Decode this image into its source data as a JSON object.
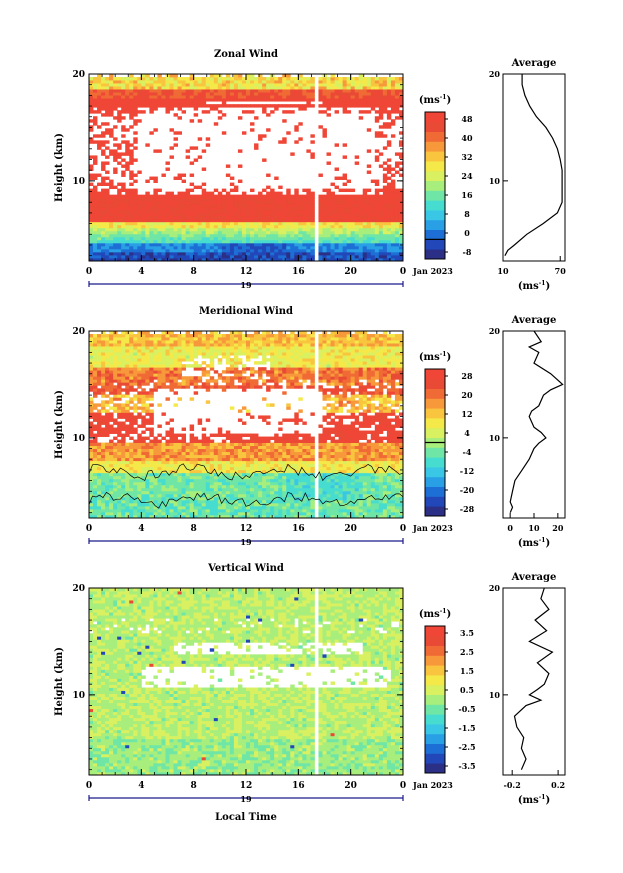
{
  "chart_data": [
    {
      "type": "heatmap",
      "title": "Zonal Wind",
      "ylabel": "Height (km)",
      "xlim": [
        0,
        24
      ],
      "ylim": [
        2.5,
        20
      ],
      "x_ticks": [
        "0",
        "4",
        "8",
        "12",
        "16",
        "20",
        "0"
      ],
      "y_ticks": [
        "10",
        "20"
      ],
      "date_label": "19",
      "month_label": "Jan 2023",
      "colorbar": {
        "unit_label": "(ms",
        "unit_exp": "-1",
        "unit_close": ")",
        "ticks": [
          "48",
          "40",
          "32",
          "24",
          "16",
          "8",
          "0",
          "-8"
        ],
        "range": [
          -8,
          52
        ],
        "zero_line": 0
      },
      "data_gap_hours": [
        17.3,
        17.6
      ],
      "profile": {
        "title": "Average",
        "xlabel": "(ms",
        "xlabel_exp": "-1",
        "xlabel_close": ")",
        "x_ticks": [
          "10",
          "70"
        ],
        "xlim": [
          10,
          75
        ],
        "heights": [
          3,
          3.5,
          4,
          5,
          6,
          7,
          8,
          9,
          10,
          11,
          12,
          13,
          14,
          15,
          16,
          17,
          18,
          19,
          20
        ],
        "values": [
          12,
          15,
          22,
          35,
          52,
          67,
          72,
          72,
          72,
          72,
          70,
          67,
          62,
          55,
          45,
          38,
          33,
          30,
          30
        ]
      }
    },
    {
      "type": "heatmap",
      "title": "Meridional Wind",
      "ylabel": "Height (km)",
      "xlim": [
        0,
        24
      ],
      "ylim": [
        2.5,
        20
      ],
      "x_ticks": [
        "0",
        "4",
        "8",
        "12",
        "16",
        "20",
        "0"
      ],
      "y_ticks": [
        "10",
        "20"
      ],
      "date_label": "19",
      "month_label": "Jan 2023",
      "colorbar": {
        "unit_label": "(ms",
        "unit_exp": "-1",
        "unit_close": ")",
        "ticks": [
          "28",
          "20",
          "12",
          "4",
          "-4",
          "-12",
          "-20",
          "-28"
        ],
        "range": [
          -32,
          32
        ],
        "zero_line": 0
      },
      "data_gap_hours": [
        17.3,
        17.6
      ],
      "profile": {
        "title": "Average",
        "xlabel": "(ms",
        "xlabel_exp": "-1",
        "xlabel_close": ")",
        "x_ticks": [
          "0",
          "10",
          "20"
        ],
        "xlim": [
          -3,
          23
        ],
        "heights": [
          3,
          3.5,
          4,
          5,
          6,
          7,
          8,
          9,
          9.5,
          10,
          10.5,
          11,
          12,
          12.5,
          13,
          14,
          14.5,
          15,
          16,
          17,
          18,
          18.5,
          19,
          20
        ],
        "values": [
          0,
          1,
          0,
          1,
          2,
          5,
          8,
          10,
          12,
          15,
          13,
          10,
          8,
          9,
          12,
          14,
          17,
          22,
          17,
          10,
          12,
          8,
          13,
          10
        ]
      }
    },
    {
      "type": "heatmap",
      "title": "Vertical Wind",
      "ylabel": "Height (km)",
      "xlabel": "Local Time",
      "xlim": [
        0,
        24
      ],
      "ylim": [
        2.5,
        20
      ],
      "x_ticks": [
        "0",
        "4",
        "8",
        "12",
        "16",
        "20",
        "0"
      ],
      "y_ticks": [
        "10",
        "20"
      ],
      "date_label": "19",
      "month_label": "Jan 2023",
      "colorbar": {
        "unit_label": "(ms",
        "unit_exp": "-1",
        "unit_close": ")",
        "ticks": [
          "3.5",
          "2.5",
          "1.5",
          "0.5",
          "-0.5",
          "-1.5",
          "-2.5",
          "-3.5"
        ],
        "range": [
          -4,
          4
        ],
        "zero_line": null
      },
      "data_gap_hours": [
        17.3,
        17.6
      ],
      "profile": {
        "title": "Average",
        "xlabel": "(ms",
        "xlabel_exp": "-1",
        "xlabel_close": ")",
        "x_ticks": [
          "-0.2",
          "0.2"
        ],
        "xlim": [
          -0.28,
          0.26
        ],
        "heights": [
          3,
          4,
          5,
          6,
          7,
          8,
          9,
          9.5,
          10,
          10.5,
          11,
          12,
          13,
          14,
          15,
          16,
          17,
          18,
          19,
          20
        ],
        "values": [
          -0.12,
          -0.08,
          -0.12,
          -0.1,
          -0.16,
          -0.18,
          -0.08,
          0.05,
          -0.05,
          0.02,
          0.08,
          0.12,
          0.02,
          0.15,
          -0.05,
          0.1,
          0.0,
          0.12,
          0.05,
          0.08
        ]
      }
    }
  ]
}
